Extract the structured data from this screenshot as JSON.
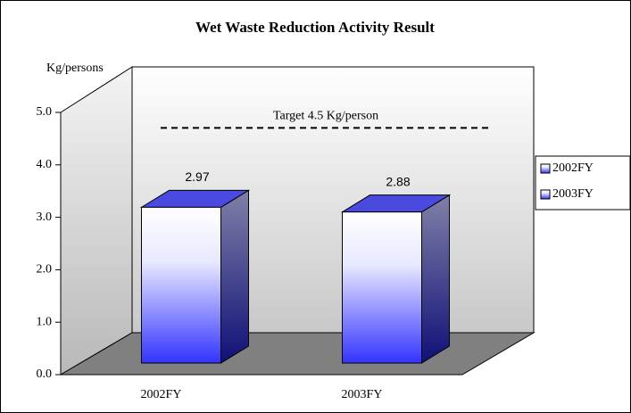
{
  "chart_data": {
    "type": "bar3d",
    "title": "Wet Waste Reduction Activity Result",
    "y_label": "Kg/persons",
    "categories": [
      "2002FY",
      "2003FY"
    ],
    "values": [
      2.97,
      2.88
    ],
    "ylim": [
      0,
      5
    ],
    "yticks": [
      {
        "value": 0,
        "label": "0.0"
      },
      {
        "value": 1,
        "label": "1.0"
      },
      {
        "value": 2,
        "label": "2.0"
      },
      {
        "value": 3,
        "label": "3.0"
      },
      {
        "value": 4,
        "label": "4.0"
      },
      {
        "value": 5,
        "label": "5.0"
      }
    ],
    "target": {
      "value": 4.5,
      "label": "Target 4.5 Kg/person"
    },
    "legend": "right"
  }
}
